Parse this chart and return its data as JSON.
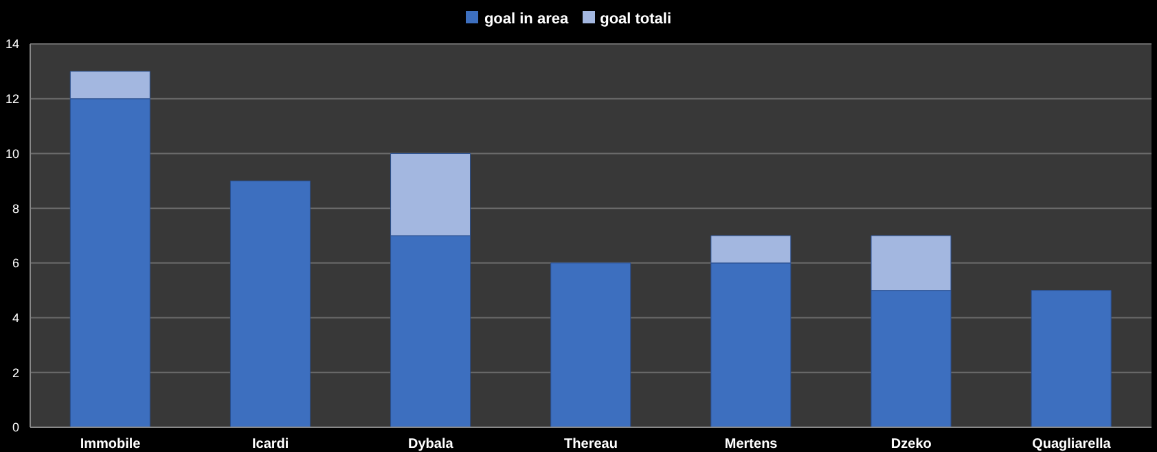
{
  "chart_data": {
    "type": "bar",
    "stacked": true,
    "categories": [
      "Immobile",
      "Icardi",
      "Dybala",
      "Thereau",
      "Mertens",
      "Dzeko",
      "Quagliarella"
    ],
    "series": [
      {
        "name": "goal in area",
        "color": "#3d6fbf",
        "values": [
          12,
          9,
          7,
          6,
          6,
          5,
          5
        ]
      },
      {
        "name": "goal totali",
        "color": "#a3b7e0",
        "values": [
          1,
          0,
          3,
          0,
          1,
          2,
          0
        ]
      }
    ],
    "ylim": [
      0,
      14
    ],
    "yticks": [
      0,
      2,
      4,
      6,
      8,
      10,
      12,
      14
    ],
    "grid": "y",
    "legend": "top"
  }
}
